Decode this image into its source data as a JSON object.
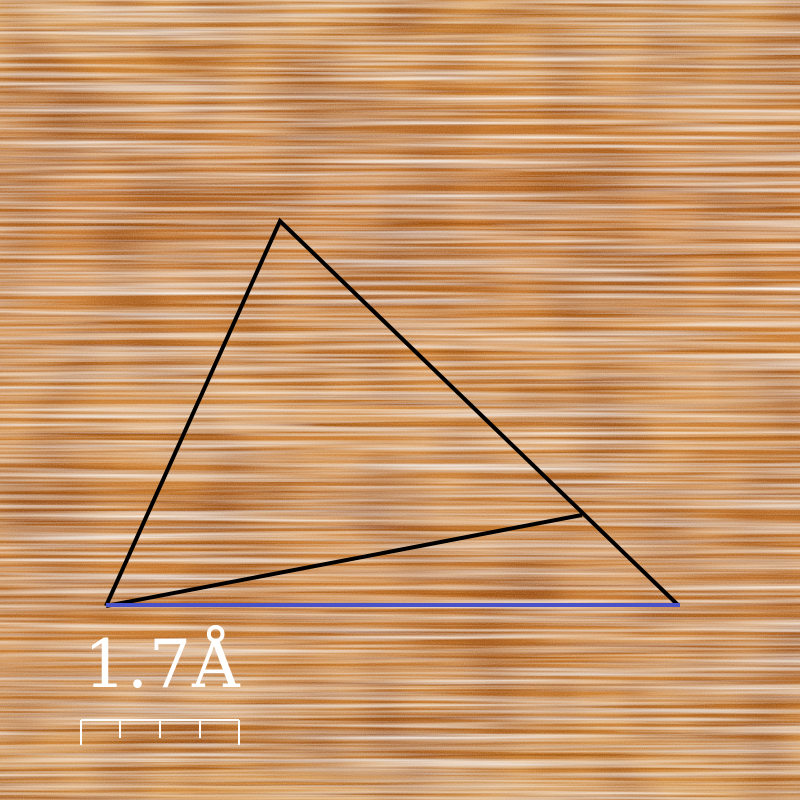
{
  "image": {
    "description_colormap": [
      "#4a1200",
      "#8a3a08",
      "#c06a22",
      "#e4a04e",
      "#ffffff"
    ]
  },
  "overlay": {
    "triangle_color": "#000000",
    "baseline_color": "#4a52c8"
  },
  "scale_bar": {
    "label": "1.7Å",
    "color": "#ffffff",
    "ticks": 5
  }
}
